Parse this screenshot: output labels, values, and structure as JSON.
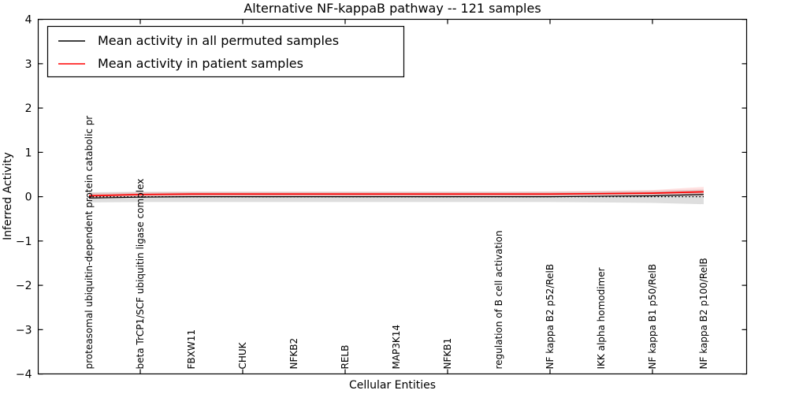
{
  "chart": {
    "title": "Alternative NF-kappaB pathway -- 121 samples",
    "xlabel": "Cellular Entities",
    "ylabel": "Inferred Activity"
  },
  "legend": {
    "entries": [
      {
        "label": "Mean activity in all permuted samples",
        "color": "#000000"
      },
      {
        "label": "Mean activity in patient samples",
        "color": "#ff0000"
      }
    ]
  },
  "chart_data": {
    "type": "line",
    "title": "Alternative NF-kappaB pathway -- 121 samples",
    "xlabel": "Cellular Entities",
    "ylabel": "Inferred Activity",
    "ylim": [
      -4,
      4
    ],
    "yticks": [
      -4,
      -3,
      -2,
      -1,
      0,
      1,
      2,
      3,
      4
    ],
    "grid": false,
    "legend_position": "upper left",
    "categories": [
      "proteasomal ubiquitin-dependent protein catabolic pr",
      "beta TrCP1/SCF ubiquitin ligase complex",
      "FBXW11",
      "CHUK",
      "NFKB2",
      "RELB",
      "MAP3K14",
      "NFKB1",
      "regulation of B cell activation",
      "NF kappa B2 p52/RelB",
      "IKK alpha homodimer",
      "NF kappa B1 p50/RelB",
      "NF kappa B2 p100/RelB"
    ],
    "xtick_mark_indices": [
      1,
      3,
      5,
      7,
      9,
      11
    ],
    "series": [
      {
        "name": "Mean activity in all permuted samples",
        "color": "#000000",
        "style": "solid",
        "width": 1.2,
        "values": [
          -0.03,
          -0.01,
          0.0,
          0.0,
          0.0,
          0.0,
          0.0,
          0.0,
          0.0,
          0.0,
          0.01,
          0.02,
          0.05
        ]
      },
      {
        "name": "Mean activity in patient samples",
        "color": "#ff0000",
        "style": "solid",
        "width": 1.7,
        "values": [
          0.02,
          0.05,
          0.06,
          0.06,
          0.06,
          0.06,
          0.06,
          0.06,
          0.06,
          0.06,
          0.07,
          0.08,
          0.11
        ]
      },
      {
        "name": "zero-baseline",
        "color": "#000000",
        "style": "dotted",
        "width": 1.3,
        "values": [
          0,
          0,
          0,
          0,
          0,
          0,
          0,
          0,
          0,
          0,
          0,
          0,
          0
        ]
      }
    ],
    "bands": [
      {
        "name": "permuted-std-band",
        "color": "#000000",
        "opacity": 0.13,
        "upper": [
          0.1,
          0.11,
          0.11,
          0.11,
          0.11,
          0.11,
          0.11,
          0.11,
          0.11,
          0.11,
          0.12,
          0.13,
          0.16
        ],
        "lower": [
          -0.13,
          -0.12,
          -0.12,
          -0.12,
          -0.12,
          -0.12,
          -0.12,
          -0.12,
          -0.12,
          -0.12,
          -0.13,
          -0.14,
          -0.17
        ]
      },
      {
        "name": "patient-std-band",
        "color": "#ff0000",
        "opacity": 0.12,
        "upper": [
          0.08,
          0.1,
          0.11,
          0.11,
          0.11,
          0.11,
          0.11,
          0.11,
          0.11,
          0.12,
          0.13,
          0.15,
          0.22
        ],
        "lower": [
          -0.05,
          -0.01,
          0.01,
          0.01,
          0.01,
          0.01,
          0.01,
          0.01,
          0.01,
          0.01,
          0.02,
          0.02,
          0.02
        ]
      }
    ]
  }
}
